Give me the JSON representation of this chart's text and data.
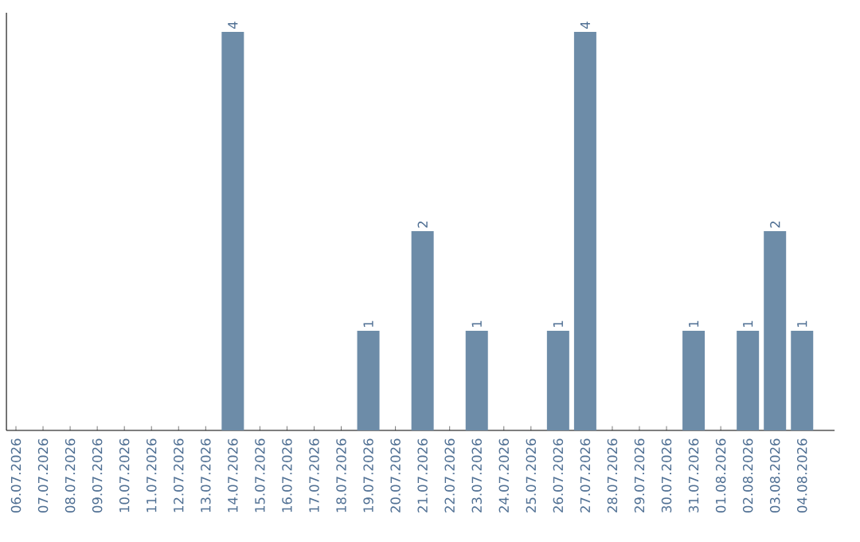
{
  "chart_data": {
    "type": "bar",
    "categories": [
      "06.07.2026",
      "07.07.2026",
      "08.07.2026",
      "09.07.2026",
      "10.07.2026",
      "11.07.2026",
      "12.07.2026",
      "13.07.2026",
      "14.07.2026",
      "15.07.2026",
      "16.07.2026",
      "17.07.2026",
      "18.07.2026",
      "19.07.2026",
      "20.07.2026",
      "21.07.2026",
      "22.07.2026",
      "23.07.2026",
      "24.07.2026",
      "25.07.2026",
      "26.07.2026",
      "27.07.2026",
      "28.07.2026",
      "29.07.2026",
      "30.07.2026",
      "31.07.2026",
      "01.08.2026",
      "02.08.2026",
      "03.08.2026",
      "04.08.2026"
    ],
    "values": [
      0,
      0,
      0,
      0,
      0,
      0,
      0,
      0,
      4,
      0,
      0,
      0,
      0,
      1,
      0,
      2,
      0,
      1,
      0,
      0,
      1,
      4,
      0,
      0,
      0,
      1,
      0,
      1,
      2,
      1
    ],
    "value_labels": [
      null,
      null,
      null,
      null,
      null,
      null,
      null,
      null,
      "4",
      null,
      null,
      null,
      null,
      "1",
      null,
      "2",
      null,
      "1",
      null,
      null,
      "1",
      "4",
      null,
      null,
      null,
      "1",
      null,
      "1",
      "2",
      "1"
    ],
    "color": "#6d8ca8"
  }
}
